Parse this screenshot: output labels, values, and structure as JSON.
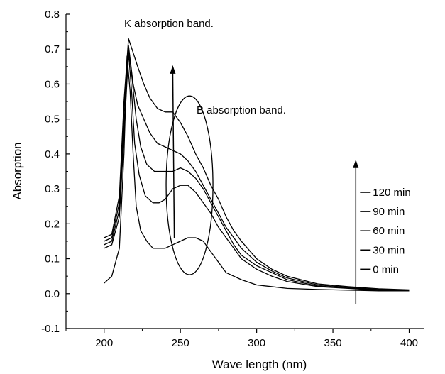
{
  "chart_data": {
    "type": "line",
    "xlabel": "Wave length (nm)",
    "ylabel": "Absorption",
    "xlim": [
      175,
      410
    ],
    "ylim": [
      -0.1,
      0.8
    ],
    "x_ticks": [
      200,
      250,
      300,
      350,
      400
    ],
    "y_ticks": [
      -0.1,
      0.0,
      0.1,
      0.2,
      0.3,
      0.4,
      0.5,
      0.6,
      0.7,
      0.8
    ],
    "x_tick_labels": [
      "200",
      "250",
      "300",
      "350",
      "400"
    ],
    "y_tick_labels": [
      "-0.1",
      "0.0",
      "0.1",
      "0.2",
      "0.3",
      "0.4",
      "0.5",
      "0.6",
      "0.7",
      "0.8"
    ],
    "grid": false,
    "legend_placement": "right, along an upward arrow at x = 365 nm",
    "annotations": [
      "K absorption band.",
      "B absorption band."
    ],
    "series": [
      {
        "name": "0 min",
        "x": [
          200,
          205,
          210,
          213,
          215,
          217,
          219,
          221,
          224,
          228,
          232,
          236,
          240,
          245,
          250,
          255,
          260,
          265,
          270,
          275,
          280,
          290,
          300,
          320,
          340,
          360,
          380,
          400
        ],
        "y": [
          0.03,
          0.05,
          0.13,
          0.4,
          0.68,
          0.58,
          0.4,
          0.25,
          0.18,
          0.15,
          0.13,
          0.13,
          0.13,
          0.14,
          0.15,
          0.16,
          0.16,
          0.15,
          0.12,
          0.09,
          0.06,
          0.04,
          0.025,
          0.015,
          0.012,
          0.01,
          0.008,
          0.008
        ]
      },
      {
        "name": "30 min",
        "x": [
          200,
          205,
          210,
          213,
          216,
          218,
          220,
          223,
          227,
          232,
          236,
          240,
          245,
          250,
          255,
          260,
          265,
          270,
          275,
          280,
          285,
          290,
          300,
          310,
          320,
          340,
          360,
          380,
          400
        ],
        "y": [
          0.13,
          0.14,
          0.22,
          0.45,
          0.69,
          0.58,
          0.43,
          0.34,
          0.28,
          0.26,
          0.26,
          0.27,
          0.3,
          0.31,
          0.31,
          0.29,
          0.26,
          0.23,
          0.19,
          0.16,
          0.13,
          0.1,
          0.07,
          0.05,
          0.035,
          0.02,
          0.015,
          0.01,
          0.008
        ]
      },
      {
        "name": "60 min",
        "x": [
          200,
          205,
          210,
          213,
          216,
          218,
          221,
          224,
          228,
          233,
          237,
          240,
          245,
          250,
          255,
          260,
          265,
          270,
          275,
          280,
          285,
          290,
          300,
          310,
          320,
          340,
          360,
          380,
          400
        ],
        "y": [
          0.14,
          0.15,
          0.24,
          0.48,
          0.7,
          0.63,
          0.5,
          0.42,
          0.37,
          0.35,
          0.35,
          0.35,
          0.35,
          0.36,
          0.35,
          0.33,
          0.3,
          0.26,
          0.22,
          0.18,
          0.14,
          0.11,
          0.08,
          0.06,
          0.04,
          0.022,
          0.016,
          0.011,
          0.009
        ]
      },
      {
        "name": "90 min",
        "x": [
          200,
          205,
          210,
          213,
          216,
          219,
          222,
          226,
          230,
          235,
          240,
          245,
          250,
          255,
          260,
          265,
          270,
          275,
          280,
          285,
          290,
          300,
          310,
          320,
          340,
          360,
          380,
          400
        ],
        "y": [
          0.15,
          0.16,
          0.26,
          0.52,
          0.71,
          0.6,
          0.54,
          0.5,
          0.46,
          0.43,
          0.42,
          0.41,
          0.4,
          0.38,
          0.35,
          0.31,
          0.27,
          0.23,
          0.19,
          0.16,
          0.13,
          0.09,
          0.065,
          0.045,
          0.025,
          0.018,
          0.012,
          0.01
        ]
      },
      {
        "name": "120 min",
        "x": [
          200,
          205,
          210,
          213,
          216,
          219,
          222,
          226,
          230,
          235,
          240,
          245,
          250,
          255,
          260,
          265,
          270,
          275,
          280,
          285,
          290,
          300,
          310,
          320,
          340,
          360,
          380,
          400
        ],
        "y": [
          0.16,
          0.17,
          0.28,
          0.55,
          0.73,
          0.69,
          0.65,
          0.6,
          0.56,
          0.53,
          0.52,
          0.52,
          0.49,
          0.45,
          0.4,
          0.36,
          0.31,
          0.27,
          0.22,
          0.18,
          0.15,
          0.1,
          0.07,
          0.05,
          0.028,
          0.02,
          0.014,
          0.011
        ]
      }
    ]
  }
}
